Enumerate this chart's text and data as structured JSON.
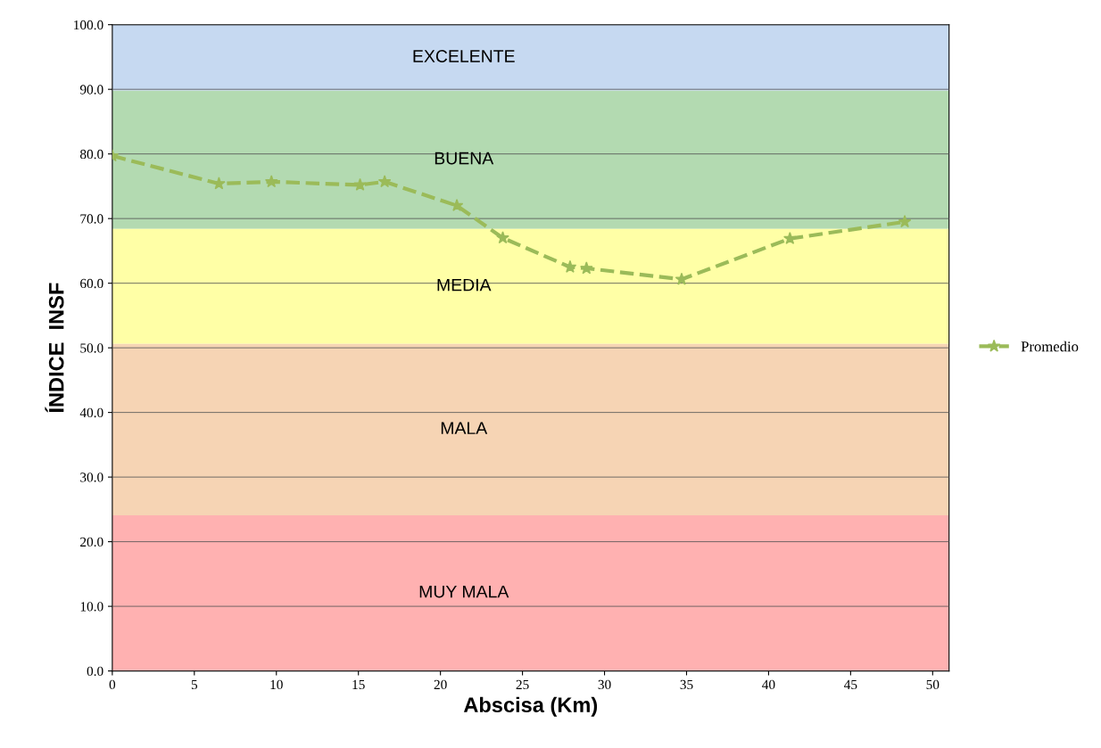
{
  "chart_data": {
    "type": "line",
    "xlabel": "Abscisa (Km)",
    "ylabel": "ÍNDICE  INSF",
    "x": [
      0,
      6.5,
      9.7,
      15.1,
      16.6,
      21.0,
      23.8,
      27.9,
      28.9,
      34.7,
      41.3,
      48.3
    ],
    "series": [
      {
        "name": "Promedio",
        "color": "#9bbb59",
        "values": [
          79.7,
          75.4,
          75.7,
          75.2,
          75.7,
          72.0,
          67.0,
          62.5,
          62.3,
          60.6,
          66.9,
          69.5
        ]
      }
    ],
    "xlim": [
      0,
      51
    ],
    "xticks": [
      0,
      5,
      10,
      15,
      20,
      25,
      30,
      35,
      40,
      45,
      50
    ],
    "ylim": [
      0,
      100
    ],
    "yticks": [
      {
        "value": 0,
        "label": "0.0"
      },
      {
        "value": 10,
        "label": "10.0"
      },
      {
        "value": 20,
        "label": "20.0"
      },
      {
        "value": 30,
        "label": "30.0"
      },
      {
        "value": 40,
        "label": "40.0"
      },
      {
        "value": 50,
        "label": "50.0"
      },
      {
        "value": 60,
        "label": "60.0"
      },
      {
        "value": 70,
        "label": "70.0"
      },
      {
        "value": 80,
        "label": "80.0"
      },
      {
        "value": 90,
        "label": "90.0"
      },
      {
        "value": 100,
        "label": "100.0"
      }
    ],
    "bands": [
      {
        "axis": "y",
        "from": 89.8,
        "to": 100,
        "label": "EXCELENTE",
        "color": "#c6d9f1"
      },
      {
        "axis": "y",
        "from": 68.4,
        "to": 89.8,
        "label": "BUENA",
        "color": "#b3dab1"
      },
      {
        "axis": "y",
        "from": 50.6,
        "to": 68.4,
        "label": "MEDIA",
        "color": "#ffffa6"
      },
      {
        "axis": "y",
        "from": 24.1,
        "to": 50.6,
        "label": "MALA",
        "color": "#f6d4b4"
      },
      {
        "axis": "y",
        "from": 0,
        "to": 24.1,
        "label": "MUY MALA",
        "color": "#ffb1b1"
      }
    ],
    "grid": "y",
    "legend": "right",
    "marker": "star",
    "line_style": "dashed"
  }
}
